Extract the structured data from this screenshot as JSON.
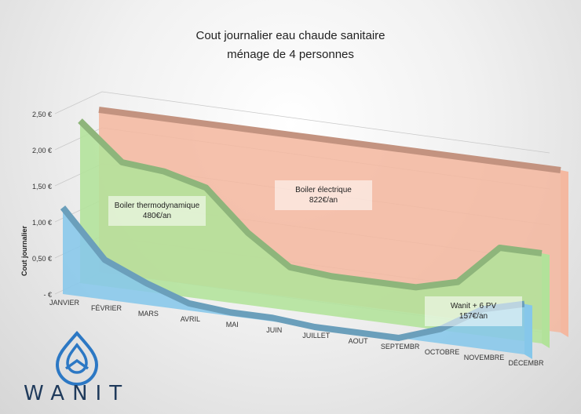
{
  "chart_data": {
    "type": "area",
    "title": [
      "Cout journalier eau chaude sanitaire",
      "ménage de 4 personnes"
    ],
    "ylabel": "Cout journalier",
    "xlabel": "",
    "ylim": [
      0,
      2.5
    ],
    "y_ticks": [
      "-   €",
      "0,50 €",
      "1,00 €",
      "1,50 €",
      "2,00 €",
      "2,50 €"
    ],
    "y_tick_values": [
      0,
      0.5,
      1.0,
      1.5,
      2.0,
      2.5
    ],
    "categories": [
      "JANVIER",
      "FÉVRIER",
      "MARS",
      "AVRIL",
      "MAI",
      "JUIN",
      "JUILLET",
      "AOUT",
      "SEPTEMBR",
      "OCTOBRE",
      "NOVEMBRE",
      "DÉCEMBR"
    ],
    "grid": true,
    "series": [
      {
        "name": "Boiler électrique",
        "annotation": [
          "Boiler électrique",
          "822€/an"
        ],
        "color": "#f4b8a0",
        "values": [
          2.25,
          2.25,
          2.25,
          2.25,
          2.25,
          2.25,
          2.25,
          2.25,
          2.25,
          2.25,
          2.25,
          2.25
        ]
      },
      {
        "name": "Boiler thermodynamique",
        "annotation": [
          "Boiler thermodynamique",
          "480€/an"
        ],
        "color": "#b2e29a",
        "values": [
          2.25,
          1.75,
          1.7,
          1.55,
          1.0,
          0.6,
          0.55,
          0.55,
          0.55,
          0.7,
          1.25,
          1.25
        ]
      },
      {
        "name": "Wanit + 6 PV",
        "annotation": [
          "Wanit + 6 PV",
          "157€/an"
        ],
        "color": "#86c7ea",
        "values": [
          1.2,
          0.55,
          0.3,
          0.1,
          0.05,
          0.05,
          0.0,
          0.0,
          0.0,
          0.2,
          0.55,
          0.7
        ]
      }
    ]
  },
  "logo": {
    "text": "WANIT",
    "color": "#1f3a5b"
  }
}
